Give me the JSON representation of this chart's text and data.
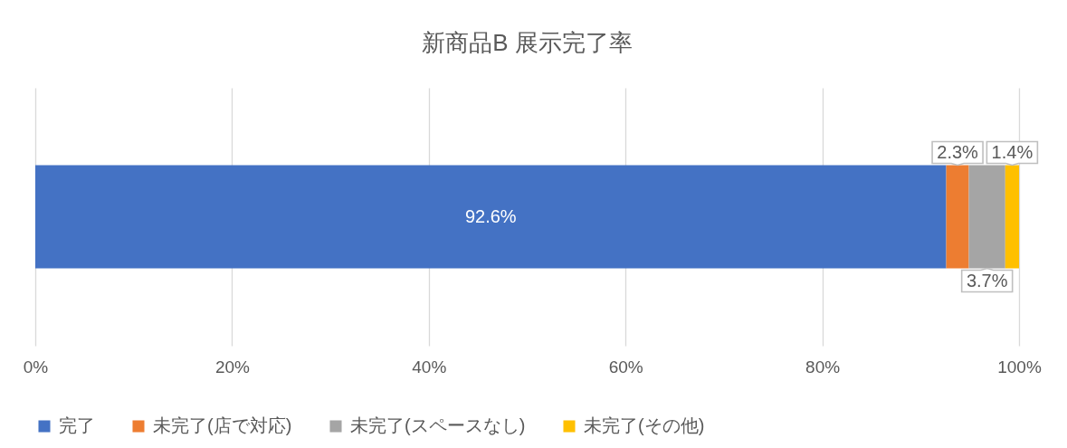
{
  "chart_data": {
    "type": "bar",
    "orientation": "horizontal",
    "stacked": true,
    "title": "新商品B 展示完了率",
    "categories": [
      null
    ],
    "series": [
      {
        "name": "完了",
        "color": "#4472c4",
        "values": [
          92.6
        ],
        "value_labels": [
          "92.6%"
        ]
      },
      {
        "name": "未完了(店で対応)",
        "color": "#ed7d31",
        "values": [
          2.3
        ],
        "value_labels": [
          "2.3%"
        ]
      },
      {
        "name": "未完了(スペースなし)",
        "color": "#a5a5a5",
        "values": [
          3.7
        ],
        "value_labels": [
          "3.7%"
        ]
      },
      {
        "name": "未完了(その他)",
        "color": "#ffc000",
        "values": [
          1.4
        ],
        "value_labels": [
          "1.4%"
        ]
      }
    ],
    "xlim": [
      0,
      100
    ],
    "xticks": [
      {
        "value": 0,
        "label": "0%"
      },
      {
        "value": 20,
        "label": "20%"
      },
      {
        "value": 40,
        "label": "40%"
      },
      {
        "value": 60,
        "label": "60%"
      },
      {
        "value": 80,
        "label": "80%"
      },
      {
        "value": 100,
        "label": "100%"
      }
    ],
    "grid": "x",
    "legend": "bottom"
  }
}
